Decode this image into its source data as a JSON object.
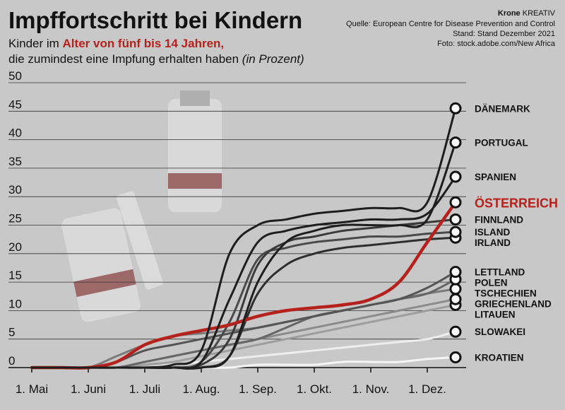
{
  "chart_data": {
    "type": "line",
    "title": "Impffortschritt bei Kindern",
    "subtitle": {
      "line1_start": "Kinder im ",
      "line1_highlight": "Alter von fünf bis 14 Jahren,",
      "line2": "die zumindest eine Impfung erhalten haben",
      "line2_unit": "(in Prozent)"
    },
    "source": {
      "brand": "Krone",
      "brand_suffix": "KREATIV",
      "lines": [
        "Quelle: European Centre for Disease Prevention and Control",
        "Stand: Stand Dezember 2021",
        "Foto: stock.adobe.com/New Africa"
      ]
    },
    "categories": [
      "1. Mai",
      null,
      "1. Juni",
      null,
      "1. Juli",
      null,
      "1. Aug.",
      null,
      "1. Sep.",
      null,
      "1. Okt.",
      null,
      "1. Nov.",
      null,
      "1. Dez.",
      null
    ],
    "ylim": [
      0,
      50
    ],
    "yticks": [
      0,
      5,
      10,
      15,
      20,
      25,
      30,
      35,
      40,
      45,
      50
    ],
    "grid": true,
    "series": [
      {
        "name": "DÄNEMARK",
        "color": "#1e1e1e",
        "values": [
          0,
          0,
          0,
          0,
          0,
          0.5,
          3,
          20,
          25,
          26,
          27,
          27.5,
          28,
          28,
          29,
          45.5
        ]
      },
      {
        "name": "PORTUGAL",
        "color": "#1e1e1e",
        "values": [
          0,
          0,
          0,
          0,
          0,
          0,
          0,
          2,
          15,
          22,
          24,
          25,
          25,
          25,
          26,
          39.5
        ]
      },
      {
        "name": "SPANIEN",
        "color": "#1e1e1e",
        "values": [
          0,
          0,
          0,
          0,
          0,
          0,
          1,
          12,
          22,
          24,
          25,
          25.5,
          26,
          26,
          27,
          33.5
        ]
      },
      {
        "name": "ÖSTERREICH",
        "color": "#b5221d",
        "values": [
          0,
          0,
          0,
          1,
          4,
          5.5,
          6.5,
          7.5,
          9,
          10,
          10.5,
          11,
          12,
          15,
          22,
          29
        ]
      },
      {
        "name": "FINNLAND",
        "color": "#3a3a3a",
        "values": [
          0,
          0,
          0,
          0,
          0,
          0,
          0.5,
          5,
          18,
          22,
          23,
          24,
          24.5,
          25,
          25.5,
          26
        ]
      },
      {
        "name": "ISLAND",
        "color": "#4a4a4a",
        "values": [
          0,
          0,
          0,
          0,
          0,
          0,
          1,
          8,
          19,
          21,
          22,
          22.5,
          23,
          23,
          23.5,
          23.8
        ]
      },
      {
        "name": "IRLAND",
        "color": "#2e2e2e",
        "values": [
          0,
          0,
          0,
          0,
          0,
          0,
          0,
          2,
          13,
          18,
          20,
          21,
          21.5,
          22,
          22.5,
          22.8
        ]
      },
      {
        "name": "LETTLAND",
        "color": "#555555",
        "values": [
          0,
          0,
          0,
          1,
          3,
          4,
          5,
          6,
          7,
          8,
          9,
          10,
          11,
          12,
          14,
          16.8
        ]
      },
      {
        "name": "POLEN",
        "color": "#666666",
        "values": [
          0,
          0,
          0,
          0,
          1,
          2,
          3,
          4,
          5,
          7,
          9,
          10,
          11,
          12,
          13,
          15.5
        ]
      },
      {
        "name": "TSCHECHIEN",
        "color": "#7a7a7a",
        "values": [
          0,
          0,
          0,
          2,
          4,
          5.5,
          6,
          6.5,
          7,
          8,
          9,
          10,
          11,
          12,
          13,
          13.8
        ]
      },
      {
        "name": "GRIECHENLAND",
        "color": "#8c8c8c",
        "values": [
          0,
          0,
          0,
          0,
          1,
          2,
          3,
          4,
          5,
          6,
          7,
          8,
          9,
          10,
          11,
          12
        ]
      },
      {
        "name": "LITAUEN",
        "color": "#9e9e9e",
        "values": [
          0,
          0,
          0,
          0,
          0.5,
          1,
          2,
          3,
          4,
          5,
          6,
          7,
          8,
          9,
          10,
          11
        ]
      },
      {
        "name": "SLOWAKEI",
        "color": "#eeeeee",
        "values": [
          0,
          0,
          0,
          0,
          0,
          0.5,
          1,
          1.5,
          2,
          2.5,
          3,
          3.5,
          4,
          4.5,
          5,
          6.3
        ]
      },
      {
        "name": "KROATIEN",
        "color": "#f5f5f5",
        "values": [
          0,
          0,
          0,
          0,
          0,
          0,
          0,
          0,
          0.5,
          0.5,
          0.5,
          1,
          1,
          1,
          1.5,
          1.8
        ]
      }
    ]
  }
}
